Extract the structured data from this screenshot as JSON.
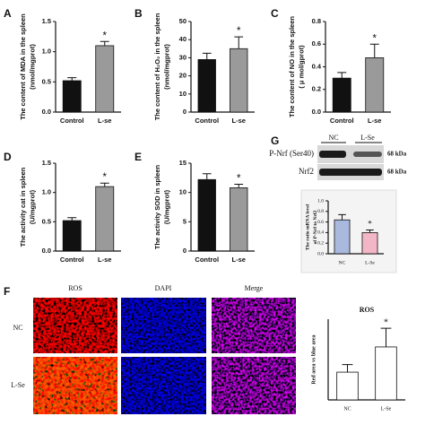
{
  "panels": {
    "A": "A",
    "B": "B",
    "C": "C",
    "D": "D",
    "E": "E",
    "F": "F",
    "G": "G"
  },
  "blot": {
    "lanes": [
      "NC",
      "L-Se"
    ],
    "rows": [
      "P-Nrf (Ser40)",
      "Nrf2"
    ],
    "sizes": [
      "68 kDa",
      "68 kDa"
    ]
  },
  "images": {
    "columns": [
      "ROS",
      "DAPI",
      "Merge"
    ],
    "rows": [
      "NC",
      "L-Se"
    ]
  },
  "chart_data": [
    {
      "type": "bar",
      "ylabel": [
        "The content of MDA in the spleen",
        "(nmol/mgprot)"
      ],
      "categories": [
        "Control",
        "L-se"
      ],
      "values": [
        0.52,
        1.1
      ],
      "errors": [
        0.05,
        0.07
      ],
      "colors": [
        "#111111",
        "#9a9a9a"
      ],
      "annotation": "*",
      "ylim": [
        0,
        1.5
      ],
      "yticks": [
        {
          "value": 0,
          "label": "0.0"
        },
        {
          "value": 0.5,
          "label": "0.5"
        },
        {
          "value": 1,
          "label": "1.0"
        },
        {
          "value": 1.5,
          "label": "1.5"
        }
      ]
    },
    {
      "type": "bar",
      "ylabel": [
        "The content of H₂O₂ in the spleen",
        "(nmol/mgprot)"
      ],
      "categories": [
        "Control",
        "L-se"
      ],
      "values": [
        29,
        35
      ],
      "errors": [
        3.5,
        6.5
      ],
      "colors": [
        "#111111",
        "#9a9a9a"
      ],
      "annotation": "*",
      "ylim": [
        0,
        50
      ],
      "yticks": [
        0,
        10,
        20,
        30,
        40,
        50
      ]
    },
    {
      "type": "bar",
      "ylabel": [
        "The content of NO in the spleen",
        "( μ mol/gprot)"
      ],
      "categories": [
        "Control",
        "L-se"
      ],
      "values": [
        0.3,
        0.48
      ],
      "errors": [
        0.05,
        0.12
      ],
      "colors": [
        "#111111",
        "#9a9a9a"
      ],
      "annotation": "*",
      "ylim": [
        0,
        0.8
      ],
      "yticks": [
        {
          "value": 0,
          "label": "0.0"
        },
        0.2,
        0.4,
        0.6,
        0.8
      ]
    },
    {
      "type": "bar",
      "ylabel": [
        "The activity cat in spleen",
        "(U/mgprot)"
      ],
      "categories": [
        "Control",
        "L-se"
      ],
      "values": [
        0.52,
        1.1
      ],
      "errors": [
        0.05,
        0.06
      ],
      "colors": [
        "#111111",
        "#9a9a9a"
      ],
      "annotation": "*",
      "ylim": [
        0,
        1.5
      ],
      "yticks": [
        {
          "value": 0,
          "label": "0.0"
        },
        {
          "value": 0.5,
          "label": "0.5"
        },
        {
          "value": 1,
          "label": "1.0"
        },
        {
          "value": 1.5,
          "label": "1.5"
        }
      ]
    },
    {
      "type": "bar",
      "ylabel": [
        "The activity SOD in spleen",
        "(U/mgprot)"
      ],
      "categories": [
        "Control",
        "L-se"
      ],
      "values": [
        12.2,
        10.8
      ],
      "errors": [
        1.0,
        0.6
      ],
      "colors": [
        "#111111",
        "#9a9a9a"
      ],
      "annotation": "*",
      "ylim": [
        0,
        15
      ],
      "yticks": [
        0,
        5,
        10,
        15
      ]
    },
    {
      "type": "bar",
      "ylabel": [
        "The ratio mRNA level",
        "of P-Nrf to Nrf2"
      ],
      "categories": [
        "NC",
        "L-Se"
      ],
      "values": [
        0.64,
        0.4
      ],
      "errors": [
        0.1,
        0.05
      ],
      "colors": [
        "#a9b9de",
        "#f3b6c6"
      ],
      "annotation": "*",
      "ylim": [
        0,
        1
      ],
      "yticks": [
        {
          "value": 0,
          "label": "0.0"
        },
        0.2,
        0.4,
        0.6,
        0.8,
        {
          "value": 1,
          "label": "1.0"
        }
      ]
    },
    {
      "type": "bar",
      "title": "ROS",
      "ylabel": [
        "Red area vs blue area"
      ],
      "categories": [
        "NC",
        "L-Se"
      ],
      "values": [
        0.55,
        1.05
      ],
      "errors": [
        0.15,
        0.37
      ],
      "colors": [
        "#ffffff",
        "#ffffff"
      ],
      "annotation": "*",
      "ylim": [
        0,
        1.6
      ]
    }
  ]
}
